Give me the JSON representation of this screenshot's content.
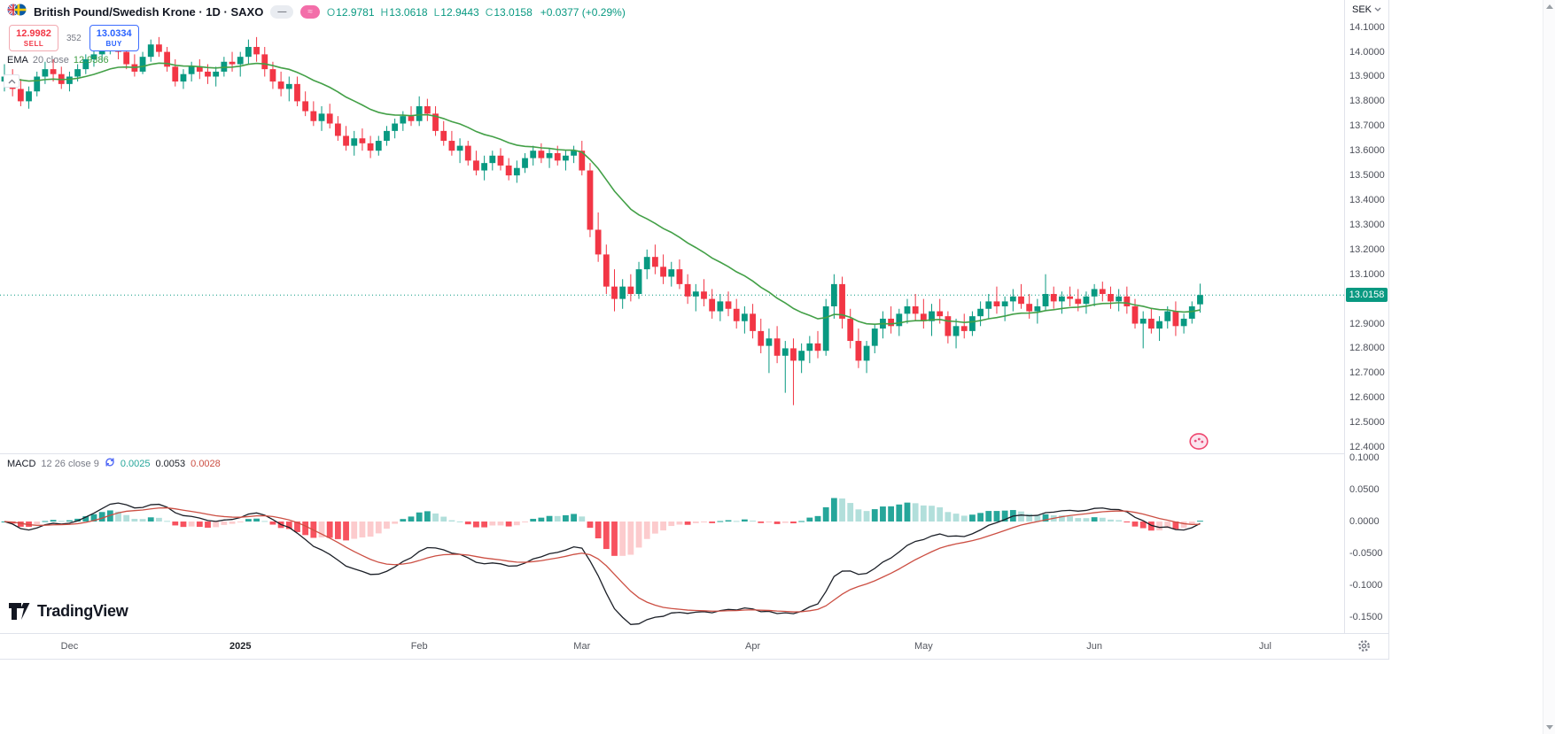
{
  "header": {
    "title": "British Pound/Swedish Krone · 1D · SAXO",
    "pills": {
      "minus": "—",
      "wave": "≈"
    },
    "ohlc_items": [
      {
        "label": "O",
        "value": "12.9781"
      },
      {
        "label": "H",
        "value": "13.0618"
      },
      {
        "label": "L",
        "value": "12.9443"
      },
      {
        "label": "C",
        "value": "13.0158"
      }
    ],
    "change": "+0.0377 (+0.29%)"
  },
  "trade_panel": {
    "sell_price": "12.9982",
    "sell_label": "SELL",
    "spread": "352",
    "buy_price": "13.0334",
    "buy_label": "BUY"
  },
  "ema_legend": {
    "name": "EMA",
    "params": "20 close",
    "value": "12.9386"
  },
  "macd_legend": {
    "name": "MACD",
    "params": "12 26 close 9",
    "hist_value": "0.0025",
    "macd_value": "0.0053",
    "signal_value": "0.0028"
  },
  "price_axis": {
    "currency": "SEK",
    "labels": [
      "14.1000",
      "14.0000",
      "13.9000",
      "13.8000",
      "13.7000",
      "13.6000",
      "13.5000",
      "13.4000",
      "13.3000",
      "13.2000",
      "13.1000",
      "13.0000",
      "12.9000",
      "12.8000",
      "12.7000",
      "12.6000",
      "12.5000",
      "12.4000"
    ],
    "current_price": "13.0158"
  },
  "macd_axis": {
    "labels": [
      "0.1000",
      "0.0500",
      "0.0000",
      "-0.0500",
      "-0.1000",
      "-0.1500"
    ]
  },
  "time_axis": {
    "labels": [
      {
        "text": "Dec",
        "index": 8
      },
      {
        "text": "2025",
        "index": 29,
        "major": true
      },
      {
        "text": "Feb",
        "index": 51
      },
      {
        "text": "Mar",
        "index": 71
      },
      {
        "text": "Apr",
        "index": 92
      },
      {
        "text": "May",
        "index": 113
      },
      {
        "text": "Jun",
        "index": 134
      },
      {
        "text": "Jul",
        "index": 155
      }
    ]
  },
  "watermark": {
    "text": "TradingView"
  },
  "colors": {
    "up": "#089981",
    "down": "#f23645",
    "ema": "#43a047",
    "macd_line": "#1b1f27",
    "signal_line": "#cc4f43",
    "hist_up": "#26a69a",
    "hist_up_weak": "#b2dfdb",
    "hist_down": "#f7525f",
    "hist_down_weak": "#fccbcd",
    "sell": "#f23645",
    "buy": "#2962ff",
    "badge_bg": "#089981"
  },
  "chart_data": {
    "type": "candlestick",
    "title": "British Pound/Swedish Krone, 1D, SAXO",
    "symbol": "GBP/SEK",
    "timeframe": "1D",
    "price_range": [
      12.375,
      14.21
    ],
    "macd_range": [
      -0.175,
      0.107
    ],
    "indicators": {
      "ema_period": 20,
      "macd": [
        12,
        26,
        9
      ]
    },
    "last_bar": {
      "open": 12.9781,
      "high": 13.0618,
      "low": 12.9443,
      "close": 13.0158,
      "change": 0.0377,
      "change_pct": 0.29
    },
    "ohlc": [
      [
        13.88,
        13.95,
        13.84,
        13.9
      ],
      [
        13.9,
        13.93,
        13.82,
        13.85
      ],
      [
        13.85,
        13.89,
        13.78,
        13.8
      ],
      [
        13.8,
        13.86,
        13.77,
        13.84
      ],
      [
        13.84,
        13.92,
        13.82,
        13.9
      ],
      [
        13.9,
        13.96,
        13.87,
        13.93
      ],
      [
        13.93,
        13.97,
        13.88,
        13.91
      ],
      [
        13.91,
        13.94,
        13.85,
        13.87
      ],
      [
        13.87,
        13.92,
        13.84,
        13.9
      ],
      [
        13.9,
        13.95,
        13.88,
        13.93
      ],
      [
        13.93,
        13.99,
        13.91,
        13.97
      ],
      [
        13.97,
        14.02,
        13.94,
        13.99
      ],
      [
        13.99,
        14.05,
        13.96,
        14.02
      ],
      [
        14.02,
        14.08,
        13.99,
        14.04
      ],
      [
        14.04,
        14.07,
        13.97,
        14.0
      ],
      [
        14.0,
        14.03,
        13.93,
        13.95
      ],
      [
        13.95,
        13.99,
        13.9,
        13.92
      ],
      [
        13.92,
        14.0,
        13.91,
        13.98
      ],
      [
        13.98,
        14.05,
        13.96,
        14.03
      ],
      [
        14.03,
        14.06,
        13.98,
        14.0
      ],
      [
        14.0,
        14.02,
        13.92,
        13.94
      ],
      [
        13.94,
        13.97,
        13.86,
        13.88
      ],
      [
        13.88,
        13.93,
        13.85,
        13.91
      ],
      [
        13.91,
        13.96,
        13.88,
        13.94
      ],
      [
        13.94,
        13.97,
        13.89,
        13.92
      ],
      [
        13.92,
        13.95,
        13.87,
        13.9
      ],
      [
        13.9,
        13.94,
        13.86,
        13.92
      ],
      [
        13.92,
        13.98,
        13.9,
        13.96
      ],
      [
        13.96,
        14.0,
        13.92,
        13.95
      ],
      [
        13.95,
        14.0,
        13.9,
        13.98
      ],
      [
        13.98,
        14.05,
        13.95,
        14.02
      ],
      [
        14.02,
        14.06,
        13.96,
        13.99
      ],
      [
        13.99,
        14.02,
        13.9,
        13.93
      ],
      [
        13.93,
        13.96,
        13.85,
        13.88
      ],
      [
        13.88,
        13.92,
        13.82,
        13.85
      ],
      [
        13.85,
        13.9,
        13.8,
        13.87
      ],
      [
        13.87,
        13.9,
        13.78,
        13.8
      ],
      [
        13.8,
        13.84,
        13.74,
        13.76
      ],
      [
        13.76,
        13.8,
        13.7,
        13.72
      ],
      [
        13.72,
        13.78,
        13.68,
        13.75
      ],
      [
        13.75,
        13.79,
        13.69,
        13.71
      ],
      [
        13.71,
        13.74,
        13.64,
        13.66
      ],
      [
        13.66,
        13.7,
        13.6,
        13.62
      ],
      [
        13.62,
        13.68,
        13.58,
        13.65
      ],
      [
        13.65,
        13.69,
        13.6,
        13.63
      ],
      [
        13.63,
        13.66,
        13.57,
        13.6
      ],
      [
        13.6,
        13.66,
        13.58,
        13.64
      ],
      [
        13.64,
        13.7,
        13.62,
        13.68
      ],
      [
        13.68,
        13.73,
        13.65,
        13.71
      ],
      [
        13.71,
        13.76,
        13.68,
        13.74
      ],
      [
        13.74,
        13.78,
        13.7,
        13.72
      ],
      [
        13.72,
        13.82,
        13.7,
        13.78
      ],
      [
        13.78,
        13.81,
        13.72,
        13.75
      ],
      [
        13.75,
        13.78,
        13.66,
        13.68
      ],
      [
        13.68,
        13.72,
        13.62,
        13.64
      ],
      [
        13.64,
        13.68,
        13.58,
        13.6
      ],
      [
        13.6,
        13.65,
        13.55,
        13.62
      ],
      [
        13.62,
        13.64,
        13.54,
        13.56
      ],
      [
        13.56,
        13.6,
        13.5,
        13.52
      ],
      [
        13.52,
        13.58,
        13.48,
        13.55
      ],
      [
        13.55,
        13.6,
        13.52,
        13.58
      ],
      [
        13.58,
        13.61,
        13.52,
        13.54
      ],
      [
        13.54,
        13.57,
        13.48,
        13.5
      ],
      [
        13.5,
        13.56,
        13.47,
        13.53
      ],
      [
        13.53,
        13.59,
        13.51,
        13.57
      ],
      [
        13.57,
        13.62,
        13.54,
        13.6
      ],
      [
        13.6,
        13.63,
        13.55,
        13.57
      ],
      [
        13.57,
        13.61,
        13.53,
        13.59
      ],
      [
        13.59,
        13.62,
        13.54,
        13.56
      ],
      [
        13.56,
        13.6,
        13.52,
        13.58
      ],
      [
        13.58,
        13.62,
        13.55,
        13.6
      ],
      [
        13.6,
        13.64,
        13.5,
        13.52
      ],
      [
        13.52,
        13.55,
        13.25,
        13.28
      ],
      [
        13.28,
        13.35,
        13.15,
        13.18
      ],
      [
        13.18,
        13.22,
        13.02,
        13.05
      ],
      [
        13.05,
        13.12,
        12.95,
        13.0
      ],
      [
        13.0,
        13.08,
        12.96,
        13.05
      ],
      [
        13.05,
        13.1,
        12.99,
        13.02
      ],
      [
        13.02,
        13.15,
        13.0,
        13.12
      ],
      [
        13.12,
        13.2,
        13.08,
        13.17
      ],
      [
        13.17,
        13.22,
        13.1,
        13.13
      ],
      [
        13.13,
        13.18,
        13.06,
        13.09
      ],
      [
        13.09,
        13.15,
        13.05,
        13.12
      ],
      [
        13.12,
        13.16,
        13.04,
        13.06
      ],
      [
        13.06,
        13.1,
        12.98,
        13.01
      ],
      [
        13.01,
        13.06,
        12.95,
        13.03
      ],
      [
        13.03,
        13.08,
        12.97,
        13.0
      ],
      [
        13.0,
        13.04,
        12.92,
        12.95
      ],
      [
        12.95,
        13.02,
        12.91,
        12.99
      ],
      [
        12.99,
        13.03,
        12.93,
        12.96
      ],
      [
        12.96,
        13.0,
        12.88,
        12.91
      ],
      [
        12.91,
        12.97,
        12.86,
        12.94
      ],
      [
        12.94,
        12.98,
        12.84,
        12.87
      ],
      [
        12.87,
        12.92,
        12.78,
        12.81
      ],
      [
        12.81,
        12.88,
        12.7,
        12.84
      ],
      [
        12.84,
        12.89,
        12.74,
        12.77
      ],
      [
        12.77,
        12.83,
        12.62,
        12.8
      ],
      [
        12.8,
        12.84,
        12.57,
        12.75
      ],
      [
        12.75,
        12.82,
        12.7,
        12.79
      ],
      [
        12.79,
        12.85,
        12.74,
        12.82
      ],
      [
        12.82,
        12.87,
        12.76,
        12.79
      ],
      [
        12.79,
        13.0,
        12.77,
        12.97
      ],
      [
        12.97,
        13.1,
        12.92,
        13.06
      ],
      [
        13.06,
        13.09,
        12.88,
        12.92
      ],
      [
        12.92,
        12.96,
        12.8,
        12.83
      ],
      [
        12.83,
        12.88,
        12.72,
        12.75
      ],
      [
        12.75,
        12.83,
        12.7,
        12.81
      ],
      [
        12.81,
        12.9,
        12.78,
        12.88
      ],
      [
        12.88,
        12.95,
        12.84,
        12.92
      ],
      [
        12.92,
        12.97,
        12.86,
        12.89
      ],
      [
        12.89,
        12.96,
        12.85,
        12.94
      ],
      [
        12.94,
        13.0,
        12.9,
        12.97
      ],
      [
        12.97,
        13.02,
        12.91,
        12.94
      ],
      [
        12.94,
        13.0,
        12.88,
        12.91
      ],
      [
        12.91,
        12.98,
        12.85,
        12.95
      ],
      [
        12.95,
        13.0,
        12.9,
        12.93
      ],
      [
        12.93,
        12.95,
        12.82,
        12.85
      ],
      [
        12.85,
        12.92,
        12.8,
        12.89
      ],
      [
        12.89,
        12.94,
        12.84,
        12.87
      ],
      [
        12.87,
        12.95,
        12.85,
        12.93
      ],
      [
        12.93,
        12.99,
        12.89,
        12.96
      ],
      [
        12.96,
        13.02,
        12.92,
        12.99
      ],
      [
        12.99,
        13.05,
        12.94,
        12.97
      ],
      [
        12.97,
        13.01,
        12.91,
        12.99
      ],
      [
        12.99,
        13.04,
        12.95,
        13.01
      ],
      [
        13.01,
        13.06,
        12.96,
        12.98
      ],
      [
        12.98,
        13.02,
        12.92,
        12.95
      ],
      [
        12.95,
        13.0,
        12.9,
        12.97
      ],
      [
        12.97,
        13.1,
        12.95,
        13.02
      ],
      [
        13.02,
        13.05,
        12.96,
        12.99
      ],
      [
        12.99,
        13.03,
        12.94,
        13.01
      ],
      [
        13.01,
        13.05,
        12.97,
        13.0
      ],
      [
        13.0,
        13.04,
        12.95,
        12.98
      ],
      [
        12.98,
        13.03,
        12.94,
        13.01
      ],
      [
        13.01,
        13.06,
        12.97,
        13.04
      ],
      [
        13.04,
        13.07,
        12.99,
        13.02
      ],
      [
        13.02,
        13.05,
        12.96,
        12.99
      ],
      [
        12.99,
        13.04,
        12.95,
        13.01
      ],
      [
        13.01,
        13.05,
        12.94,
        12.97
      ],
      [
        12.97,
        13.0,
        12.88,
        12.9
      ],
      [
        12.9,
        12.95,
        12.8,
        12.92
      ],
      [
        12.92,
        12.96,
        12.86,
        12.88
      ],
      [
        12.88,
        12.93,
        12.83,
        12.91
      ],
      [
        12.91,
        12.97,
        12.88,
        12.95
      ],
      [
        12.95,
        12.99,
        12.85,
        12.89
      ],
      [
        12.89,
        12.94,
        12.86,
        12.92
      ],
      [
        12.92,
        12.99,
        12.9,
        12.97
      ],
      [
        12.9781,
        13.0618,
        12.9443,
        13.0158
      ]
    ]
  }
}
